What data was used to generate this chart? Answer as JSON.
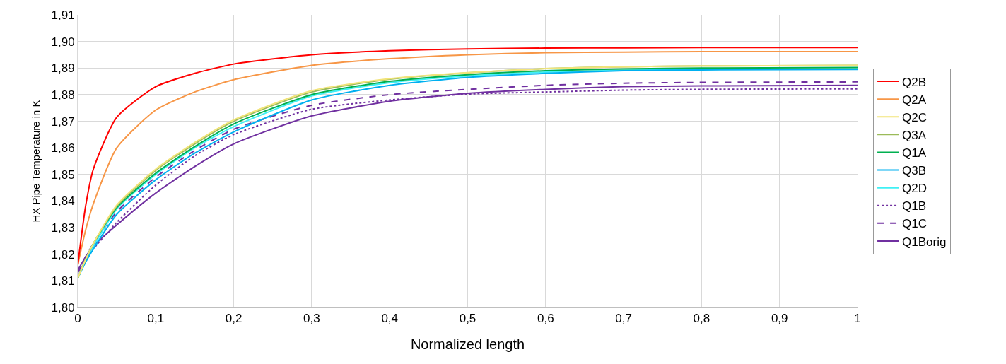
{
  "chart_data": {
    "type": "line",
    "xlabel": "Normalized length",
    "ylabel": "HX Pipe Temperature in K",
    "x": [
      0,
      0.01,
      0.02,
      0.05,
      0.1,
      0.15,
      0.2,
      0.3,
      0.4,
      0.5,
      0.6,
      0.7,
      0.8,
      1
    ],
    "series": [
      {
        "name": "Q2B",
        "color": "#ff0000",
        "values": [
          1.816,
          1.838,
          1.852,
          1.8715,
          1.883,
          1.888,
          1.8915,
          1.895,
          1.8965,
          1.8972,
          1.8975,
          1.8976,
          1.8977,
          1.8977
        ]
      },
      {
        "name": "Q2A",
        "color": "#f79646",
        "values": [
          1.816,
          1.829,
          1.839,
          1.86,
          1.8742,
          1.881,
          1.8856,
          1.891,
          1.8935,
          1.895,
          1.8958,
          1.896,
          1.8962,
          1.8962
        ]
      },
      {
        "name": "Q2C",
        "color": "#f2e47a",
        "values": [
          1.811,
          1.818,
          1.824,
          1.8385,
          1.852,
          1.862,
          1.8705,
          1.8815,
          1.886,
          1.8883,
          1.8898,
          1.8905,
          1.8908,
          1.891
        ]
      },
      {
        "name": "Q3A",
        "color": "#9bbb59",
        "values": [
          1.811,
          1.818,
          1.824,
          1.838,
          1.8515,
          1.8615,
          1.87,
          1.881,
          1.8858,
          1.8882,
          1.8898,
          1.8905,
          1.8908,
          1.891
        ]
      },
      {
        "name": "Q1A",
        "color": "#00b050",
        "values": [
          1.811,
          1.818,
          1.824,
          1.8375,
          1.8505,
          1.8605,
          1.869,
          1.88,
          1.885,
          1.8875,
          1.889,
          1.8897,
          1.89,
          1.8902
        ]
      },
      {
        "name": "Q3B",
        "color": "#00b0f0",
        "values": [
          1.811,
          1.817,
          1.822,
          1.835,
          1.848,
          1.858,
          1.866,
          1.878,
          1.8835,
          1.8865,
          1.888,
          1.889,
          1.8893,
          1.8895
        ]
      },
      {
        "name": "Q2D",
        "color": "#3ff0f5",
        "values": [
          1.811,
          1.818,
          1.823,
          1.837,
          1.85,
          1.86,
          1.868,
          1.8795,
          1.8845,
          1.887,
          1.8885,
          1.8892,
          1.8895,
          1.8897
        ]
      },
      {
        "name": "Q1B",
        "color": "#7030a0",
        "line_style": "dotted",
        "values": [
          1.812,
          1.818,
          1.822,
          1.832,
          1.846,
          1.857,
          1.865,
          1.8745,
          1.878,
          1.8802,
          1.881,
          1.8817,
          1.882,
          1.8822
        ]
      },
      {
        "name": "Q1C",
        "color": "#7030a0",
        "line_style": "dashed",
        "values": [
          1.813,
          1.819,
          1.824,
          1.836,
          1.849,
          1.859,
          1.867,
          1.876,
          1.88,
          1.882,
          1.8835,
          1.8843,
          1.8846,
          1.8848
        ]
      },
      {
        "name": "Q1Borig",
        "color": "#7030a0",
        "values": [
          1.814,
          1.819,
          1.823,
          1.831,
          1.843,
          1.853,
          1.8615,
          1.872,
          1.8775,
          1.8805,
          1.882,
          1.883,
          1.8833,
          1.8835
        ]
      }
    ],
    "xlim": [
      0,
      1
    ],
    "xticks": [
      0,
      {
        "value": 0.1,
        "label": "0,1"
      },
      {
        "value": 0.2,
        "label": "0,2"
      },
      {
        "value": 0.3,
        "label": "0,3"
      },
      {
        "value": 0.4,
        "label": "0,4"
      },
      {
        "value": 0.5,
        "label": "0,5"
      },
      {
        "value": 0.6,
        "label": "0,6"
      },
      {
        "value": 0.7,
        "label": "0,7"
      },
      {
        "value": 0.8,
        "label": "0,8"
      },
      {
        "value": 0.9,
        "label": "0,9"
      },
      1
    ],
    "ylim": [
      1.8,
      1.91
    ],
    "yticks": [
      {
        "value": 1.8,
        "label": "1,80"
      },
      {
        "value": 1.81,
        "label": "1,81"
      },
      {
        "value": 1.82,
        "label": "1,82"
      },
      {
        "value": 1.83,
        "label": "1,83"
      },
      {
        "value": 1.84,
        "label": "1,84"
      },
      {
        "value": 1.85,
        "label": "1,85"
      },
      {
        "value": 1.86,
        "label": "1,86"
      },
      {
        "value": 1.87,
        "label": "1,87"
      },
      {
        "value": 1.88,
        "label": "1,88"
      },
      {
        "value": 1.89,
        "label": "1,89"
      },
      {
        "value": 1.9,
        "label": "1,90"
      },
      {
        "value": 1.91,
        "label": "1,91"
      }
    ],
    "grid": true,
    "legend": "right",
    "marker": "none",
    "line_style": "solid"
  }
}
